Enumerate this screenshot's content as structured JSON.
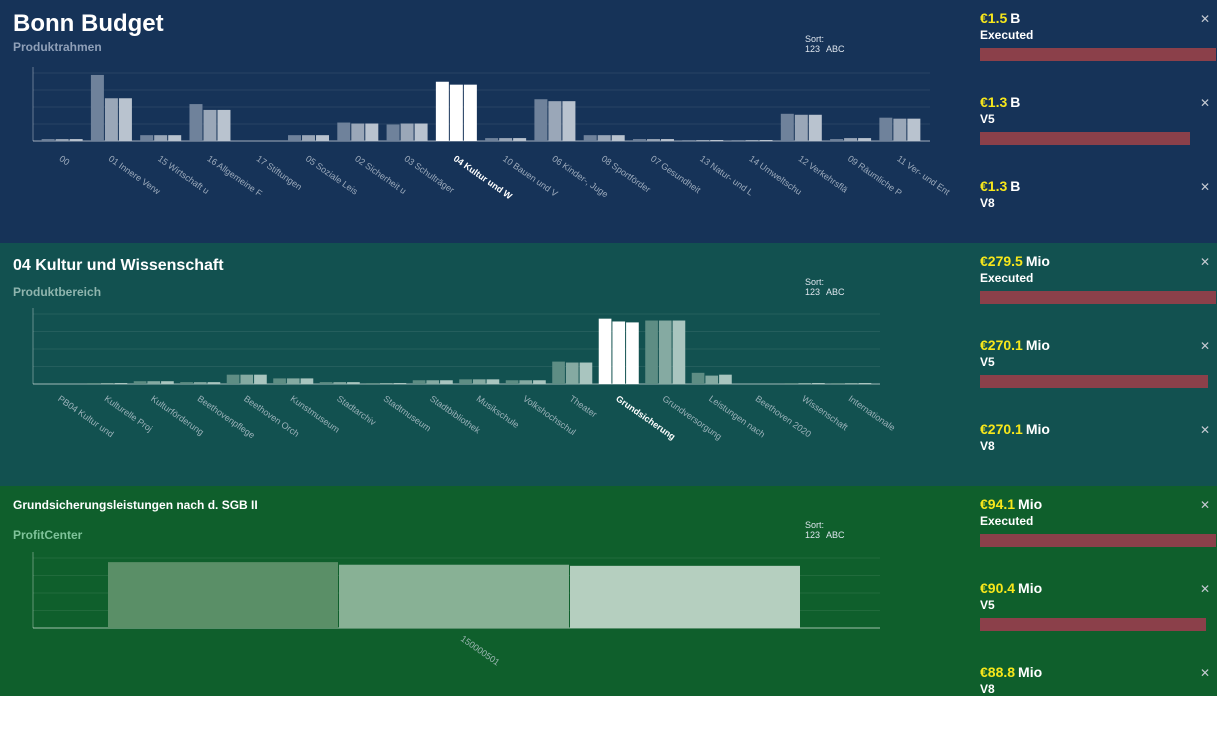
{
  "colors": {
    "band1": "#163358",
    "band2": "#125150",
    "band3": "#0f5f2c",
    "value": "#f7e71b",
    "budget_bar": "#8b404a",
    "highlight": "#ffffff"
  },
  "sort": {
    "label": "Sort:",
    "num": "123",
    "abc": "ABC"
  },
  "icons": {
    "close": "close-icon"
  },
  "sections": [
    {
      "title": "Bonn Budget",
      "subtitle": "Produktrahmen",
      "cards": [
        {
          "value": "€1.5",
          "unit": "B",
          "label": "Executed",
          "fill": 1.0
        },
        {
          "value": "€1.3",
          "unit": "B",
          "label": "V5",
          "fill": 0.87
        },
        {
          "value": "€1.3",
          "unit": "B",
          "label": "V8",
          "fill": null
        }
      ]
    },
    {
      "title": "04 Kultur und Wissenschaft",
      "subtitle": "Produktbereich",
      "cards": [
        {
          "value": "€279.5",
          "unit": "Mio",
          "label": "Executed",
          "fill": 1.0
        },
        {
          "value": "€270.1",
          "unit": "Mio",
          "label": "V5",
          "fill": 0.966
        },
        {
          "value": "€270.1",
          "unit": "Mio",
          "label": "V8",
          "fill": null
        }
      ]
    },
    {
      "title": "Grundsicherungsleistungen nach d. SGB II",
      "subtitle": "ProfitCenter",
      "cards": [
        {
          "value": "€94.1",
          "unit": "Mio",
          "label": "Executed",
          "fill": 1.0
        },
        {
          "value": "€90.4",
          "unit": "Mio",
          "label": "V5",
          "fill": 0.96
        },
        {
          "value": "€88.8",
          "unit": "Mio",
          "label": "V8",
          "fill": null
        }
      ]
    }
  ],
  "chart_data": [
    {
      "type": "bar",
      "series": [
        {
          "values_note": "Executed, V5, V8"
        }
      ],
      "categories": [
        "00",
        "01 Innere Verw",
        "15 Wirtschaft u",
        "16 Allgemeine F",
        "17 Stiftungen",
        "05 Soziale Leis",
        "02 Sicherheit u",
        "03 Schulträger",
        "04 Kultur und W",
        "10 Bauen und V",
        "06 Kinder-, Juge",
        "08 Sportförder",
        "07 Gesundheit",
        "13 Natur- und L",
        "14 Umweltschu",
        "12 Verkehrsflä",
        "09 Räumliche P",
        "11 Ver- und Ent"
      ],
      "values": [
        [
          2,
          2,
          2
        ],
        [
          68,
          44,
          44
        ],
        [
          6,
          6,
          6
        ],
        [
          38,
          32,
          32
        ],
        [
          0,
          0,
          0
        ],
        [
          6,
          6,
          6
        ],
        [
          19,
          18,
          18
        ],
        [
          17,
          18,
          18
        ],
        [
          61,
          58,
          58
        ],
        [
          3,
          3,
          3
        ],
        [
          43,
          41,
          41
        ],
        [
          6,
          6,
          6
        ],
        [
          2,
          2,
          2
        ],
        [
          1,
          1,
          1
        ],
        [
          1,
          1,
          1
        ],
        [
          28,
          27,
          27
        ],
        [
          2,
          3,
          3
        ],
        [
          24,
          23,
          23
        ]
      ],
      "highlight": "04 Kultur und W",
      "ylim": [
        0,
        70
      ]
    },
    {
      "type": "bar",
      "categories": [
        "PB04 Kultur und",
        "Kulturelle Proj",
        "Kulturförderung",
        "Beethovenpflege",
        "Beethoven Orch",
        "Kunstmuseum",
        "Stadtarchiv",
        "Stadtmuseum",
        "Stadtbibliothek",
        "Musikschule",
        "Volkshochschul",
        "Theater",
        "Grundsicherung",
        "Grundversorgung",
        "Leistungen nach",
        "Beethoven 2020",
        "Wissenschaft",
        "Internationale"
      ],
      "values": [
        [
          0,
          0,
          0
        ],
        [
          1,
          1,
          1
        ],
        [
          3,
          3,
          3
        ],
        [
          2,
          2,
          2
        ],
        [
          10,
          10,
          10
        ],
        [
          6,
          6,
          6
        ],
        [
          2,
          2,
          2
        ],
        [
          1,
          1,
          1
        ],
        [
          4,
          4,
          4
        ],
        [
          5,
          5,
          5
        ],
        [
          4,
          4,
          4
        ],
        [
          24,
          23,
          23
        ],
        [
          70,
          67,
          66
        ],
        [
          68,
          68,
          68
        ],
        [
          12,
          9,
          10
        ],
        [
          0,
          0,
          0
        ],
        [
          1,
          1,
          1
        ],
        [
          1,
          1,
          1
        ]
      ],
      "highlight": "Grundsicherung",
      "ylim": [
        0,
        75
      ]
    },
    {
      "type": "bar",
      "categories": [
        "150000501"
      ],
      "values": [
        [
          94.1,
          90.4,
          88.8
        ]
      ],
      "ylim": [
        0,
        100
      ]
    }
  ]
}
